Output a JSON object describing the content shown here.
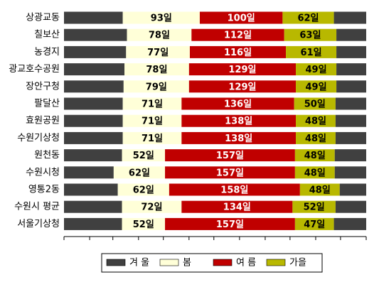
{
  "chart_data": {
    "type": "stacked-barh",
    "categories": [
      "상광교동",
      "칠보산",
      "농경지",
      "광교호수공원",
      "장안구청",
      "팔달산",
      "효원공원",
      "수원기상청",
      "원천동",
      "수원시청",
      "영통2동",
      "수원시 평균",
      "서울기상청"
    ],
    "xlim": [
      0,
      365
    ],
    "xticks": [
      0,
      31,
      59,
      90,
      120,
      151,
      181,
      212,
      243,
      273,
      304,
      334,
      365
    ],
    "series": [
      {
        "name": "겨 울",
        "color": "#404040",
        "values": [
          71,
          76,
          75,
          73,
          72,
          71,
          71,
          71,
          70,
          60,
          65,
          70,
          70
        ],
        "values_end": [
          39,
          36,
          36,
          36,
          36,
          37,
          37,
          37,
          38,
          38,
          32,
          37,
          39
        ]
      },
      {
        "name": "봄",
        "color": "#ffffd8",
        "label_color": "#000000",
        "values": [
          93,
          78,
          77,
          78,
          79,
          71,
          71,
          71,
          52,
          62,
          62,
          72,
          52
        ],
        "value_labels": [
          "93일",
          "78일",
          "77일",
          "78일",
          "79일",
          "71일",
          "71일",
          "71일",
          "52일",
          "62일",
          "62일",
          "72일",
          "52일"
        ]
      },
      {
        "name": "여 름",
        "color": "#c00000",
        "label_color": "#ffffff",
        "values": [
          100,
          112,
          116,
          129,
          129,
          136,
          138,
          138,
          157,
          157,
          158,
          134,
          157
        ],
        "value_labels": [
          "100일",
          "112일",
          "116일",
          "129일",
          "129일",
          "136일",
          "138일",
          "138일",
          "157일",
          "157일",
          "158일",
          "134일",
          "157일"
        ]
      },
      {
        "name": "가을",
        "color": "#b8b800",
        "label_color": "#000000",
        "values": [
          62,
          63,
          61,
          49,
          49,
          50,
          48,
          48,
          48,
          48,
          48,
          52,
          47
        ],
        "value_labels": [
          "62일",
          "63일",
          "61일",
          "49일",
          "49일",
          "50일",
          "48일",
          "48일",
          "48일",
          "48일",
          "48일",
          "52일",
          "47일"
        ]
      }
    ]
  }
}
